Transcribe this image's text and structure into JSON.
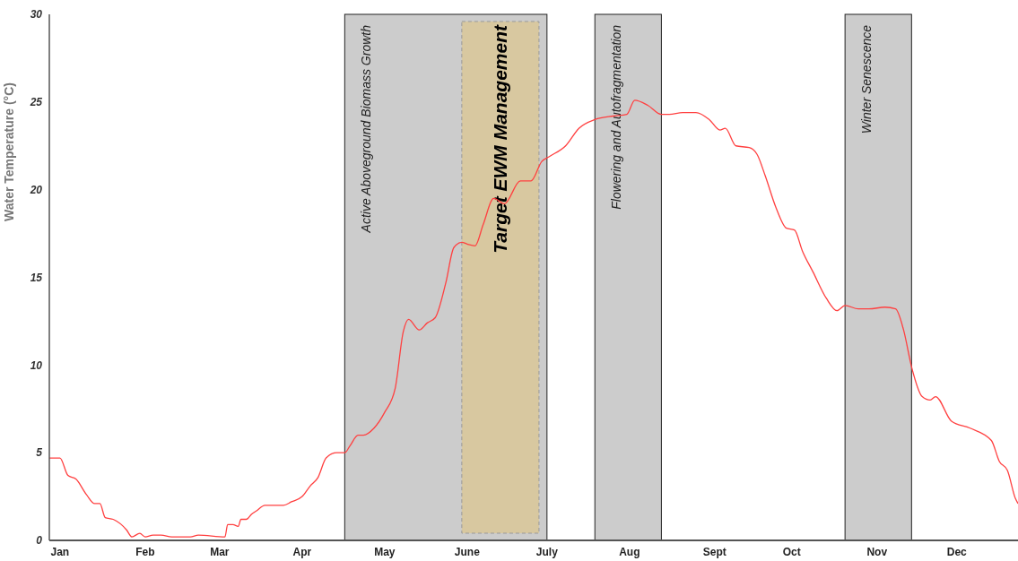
{
  "chart_data": {
    "type": "line",
    "ylabel": "Water Temperature (°C)",
    "x": [
      "--01-01",
      "--01-05",
      "--01-08",
      "--01-11",
      "--01-15",
      "--01-18",
      "--01-20",
      "--01-22",
      "--01-25",
      "--01-30",
      "--02-01",
      "--02-04",
      "--02-06",
      "--02-09",
      "--02-12",
      "--02-16",
      "--02-23",
      "--02-26",
      "--03-08",
      "--03-09",
      "--03-11",
      "--03-13",
      "--03-14",
      "--03-16",
      "--03-18",
      "--03-20",
      "--03-23",
      "--03-30",
      "--04-02",
      "--04-06",
      "--04-09",
      "--04-12",
      "--04-15",
      "--04-19",
      "--04-22",
      "--04-24",
      "--04-27",
      "--04-29",
      "--05-03",
      "--05-07",
      "--05-11",
      "--05-14",
      "--05-16",
      "--05-20",
      "--05-23",
      "--05-26",
      "--05-30",
      "--06-02",
      "--06-05",
      "--06-07",
      "--06-10",
      "--06-13",
      "--06-17",
      "--06-21",
      "--06-27",
      "--07-01",
      "--07-05",
      "--07-08",
      "--07-14",
      "--07-19",
      "--07-25",
      "--08-01",
      "--08-06",
      "--08-09",
      "--08-14",
      "--08-19",
      "--08-22",
      "--08-27",
      "--09-01",
      "--09-06",
      "--09-10",
      "--09-12",
      "--09-16",
      "--09-21",
      "--09-24",
      "--09-27",
      "--10-01",
      "--10-05",
      "--10-08",
      "--10-11",
      "--10-15",
      "--10-20",
      "--10-24",
      "--10-27",
      "--11-01",
      "--11-05",
      "--11-11",
      "--11-15",
      "--11-18",
      "--11-21",
      "--11-25",
      "--11-28",
      "--11-30",
      "--12-06",
      "--12-13",
      "--12-21",
      "--12-24",
      "--12-27",
      "--12-30",
      "--12-31"
    ],
    "series": [
      {
        "color": "#ff4040",
        "values": [
          4.7,
          4.7,
          3.7,
          3.5,
          2.6,
          2.1,
          2.1,
          1.3,
          1.2,
          0.6,
          0.2,
          0.4,
          0.2,
          0.3,
          0.3,
          0.2,
          0.2,
          0.3,
          0.2,
          0.9,
          0.9,
          0.8,
          1.2,
          1.2,
          1.5,
          1.7,
          2.0,
          2.0,
          2.2,
          2.5,
          3.1,
          3.6,
          4.7,
          5.0,
          5.0,
          5.4,
          6.0,
          6.0,
          6.4,
          7.3,
          8.7,
          11.9,
          12.6,
          12.0,
          12.4,
          12.7,
          14.7,
          16.7,
          17.0,
          16.9,
          16.8,
          18.0,
          19.5,
          19.2,
          20.5,
          20.5,
          21.6,
          21.9,
          22.5,
          23.5,
          24.0,
          24.2,
          24.3,
          25.1,
          24.8,
          24.3,
          24.3,
          24.4,
          24.4,
          24.0,
          23.4,
          23.5,
          22.5,
          22.4,
          22.0,
          20.8,
          19.0,
          17.8,
          17.7,
          16.5,
          15.3,
          13.8,
          13.1,
          13.4,
          13.2,
          13.2,
          13.3,
          13.2,
          12.0,
          9.9,
          8.2,
          8.0,
          8.2,
          6.8,
          6.4,
          5.7,
          4.5,
          4.0,
          2.4,
          2.1
        ]
      }
    ],
    "xlim": [
      "--01-01",
      "--12-31"
    ],
    "xticks": [
      {
        "value": "--01-05",
        "label": "Jan"
      },
      {
        "value": "--02-06",
        "label": "Feb"
      },
      {
        "value": "--03-06",
        "label": "Mar"
      },
      {
        "value": "--04-06",
        "label": "Apr"
      },
      {
        "value": "--05-07",
        "label": "May"
      },
      {
        "value": "--06-07",
        "label": "June"
      },
      {
        "value": "--07-07",
        "label": "July"
      },
      {
        "value": "--08-07",
        "label": "Aug"
      },
      {
        "value": "--09-08",
        "label": "Sept"
      },
      {
        "value": "--10-07",
        "label": "Oct"
      },
      {
        "value": "--11-08",
        "label": "Nov"
      },
      {
        "value": "--12-08",
        "label": "Dec"
      }
    ],
    "ylim": [
      0,
      30
    ],
    "yticks": [
      0,
      5,
      10,
      15,
      20,
      25,
      30
    ],
    "bands": [
      {
        "axis": "x",
        "from": "--04-22",
        "to": "--07-07",
        "label": "Active Aboveground Biomass Growth",
        "color": "#cccccc"
      },
      {
        "axis": "x",
        "from": "--06-05",
        "to": "--07-04",
        "label": "Target EWM Management",
        "color": "#d8c8a0"
      },
      {
        "axis": "x",
        "from": "--07-25",
        "to": "--08-19",
        "label": "Flowering and Autofragmentation",
        "color": "#cccccc"
      },
      {
        "axis": "x",
        "from": "--10-27",
        "to": "--11-21",
        "label": "Winter Senescence",
        "color": "#cccccc"
      }
    ],
    "grid": false,
    "legend": false,
    "marker": "none",
    "line_style": "solid"
  }
}
